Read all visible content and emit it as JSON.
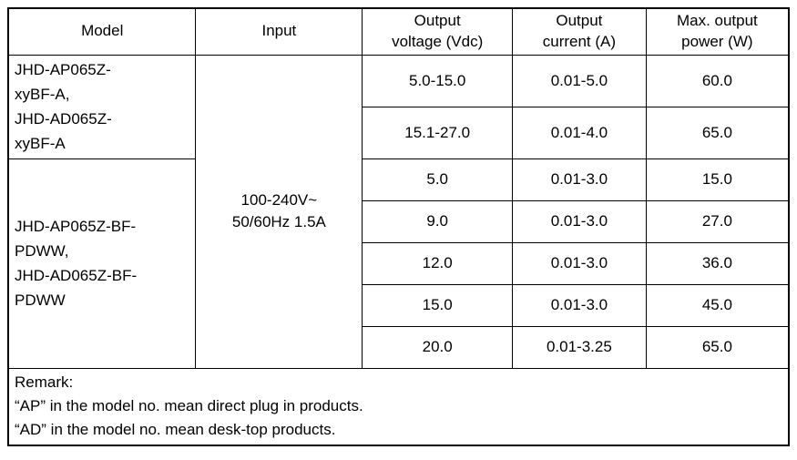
{
  "table": {
    "header": {
      "model": "Model",
      "input": "Input",
      "output_voltage": "Output\nvoltage (Vdc)",
      "output_current": "Output\ncurrent (A)",
      "max_output_power": "Max. output\npower (W)"
    },
    "model_groups": [
      {
        "label": "JHD-AP065Z-\nxyBF-A,\nJHD-AD065Z-\nxyBF-A"
      },
      {
        "label": "JHD-AP065Z-BF-\nPDWW,\nJHD-AD065Z-BF-\nPDWW"
      }
    ],
    "input_value": "100-240V~\n50/60Hz 1.5A",
    "rows": [
      {
        "voltage": "5.0-15.0",
        "current": "0.01-5.0",
        "power": "60.0"
      },
      {
        "voltage": "15.1-27.0",
        "current": "0.01-4.0",
        "power": "65.0"
      },
      {
        "voltage": "5.0",
        "current": "0.01-3.0",
        "power": "15.0"
      },
      {
        "voltage": "9.0",
        "current": "0.01-3.0",
        "power": "27.0"
      },
      {
        "voltage": "12.0",
        "current": "0.01-3.0",
        "power": "36.0"
      },
      {
        "voltage": "15.0",
        "current": "0.01-3.0",
        "power": "45.0"
      },
      {
        "voltage": "20.0",
        "current": "0.01-3.25",
        "power": "65.0"
      }
    ],
    "remark": {
      "title": "Remark:",
      "line1": "“AP” in the model no. mean direct plug in products.",
      "line2": "“AD” in the model no. mean desk-top products."
    }
  }
}
